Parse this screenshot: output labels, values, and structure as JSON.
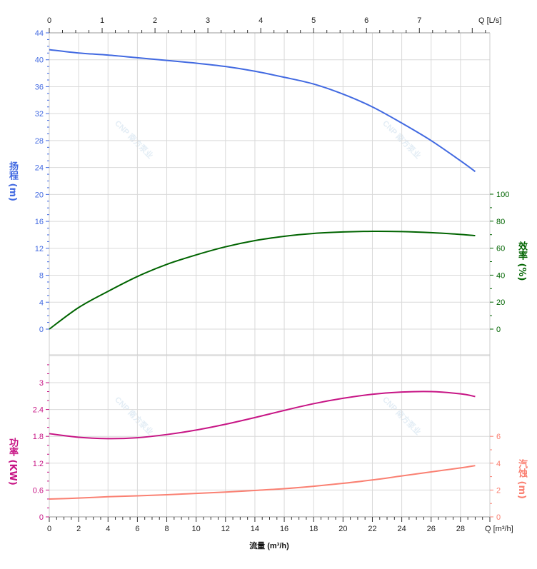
{
  "chart_data": {
    "type": "line",
    "x": [
      0,
      2,
      4,
      6,
      8,
      10,
      12,
      14,
      16,
      18,
      20,
      22,
      24,
      26,
      28,
      29
    ],
    "xlabel": "流量 (m³/h)",
    "x_unit_label": "Q [m³/h]",
    "x_ticks": [
      0,
      2,
      4,
      6,
      8,
      10,
      12,
      14,
      16,
      18,
      20,
      22,
      24,
      26,
      28
    ],
    "xlim": [
      0,
      30
    ],
    "top_axis": {
      "label": "Q [L/s]",
      "ticks": [
        0,
        1,
        2,
        3,
        4,
        5,
        6,
        7
      ],
      "factor_m3h_per_unit": 3.6
    },
    "grid": true,
    "colors": {
      "head": "#4169e1",
      "efficiency": "#006400",
      "power": "#c71585",
      "npsh": "#fa8072",
      "grid": "#d9d9d9"
    },
    "series": [
      {
        "key": "head",
        "axis_label": "扬程 (m)",
        "ticks": [
          0,
          4,
          8,
          12,
          16,
          20,
          24,
          28,
          32,
          36,
          40,
          44
        ],
        "ylim": [
          0,
          44
        ],
        "values": [
          41.5,
          41.0,
          40.7,
          40.3,
          39.9,
          39.5,
          39.0,
          38.3,
          37.4,
          36.4,
          34.9,
          33.0,
          30.6,
          28.0,
          25.0,
          23.4
        ]
      },
      {
        "key": "efficiency",
        "axis_label": "效率 (%)",
        "ticks": [
          0,
          20,
          40,
          60,
          80,
          100
        ],
        "ylim": [
          0,
          100
        ],
        "values": [
          0,
          16,
          28,
          39,
          48,
          55,
          61,
          65.6,
          68.8,
          70.9,
          72,
          72.5,
          72.3,
          71.5,
          70.2,
          69.3
        ]
      },
      {
        "key": "power",
        "axis_label": "功率 (KW)",
        "ticks": [
          0,
          0.6,
          1.2,
          1.8,
          2.4,
          3
        ],
        "ylim": [
          0,
          3.6
        ],
        "values": [
          1.86,
          1.78,
          1.75,
          1.77,
          1.84,
          1.94,
          2.07,
          2.22,
          2.38,
          2.53,
          2.65,
          2.74,
          2.79,
          2.8,
          2.75,
          2.69
        ]
      },
      {
        "key": "npsh",
        "axis_label": "汽蚀 (m)",
        "ticks": [
          0,
          2,
          4,
          6
        ],
        "ylim": [
          0,
          6
        ],
        "values": [
          1.33,
          1.4,
          1.5,
          1.57,
          1.65,
          1.75,
          1.85,
          1.97,
          2.1,
          2.28,
          2.5,
          2.75,
          3.05,
          3.35,
          3.65,
          3.82
        ]
      }
    ]
  },
  "watermark": "CNP 南方泵业"
}
